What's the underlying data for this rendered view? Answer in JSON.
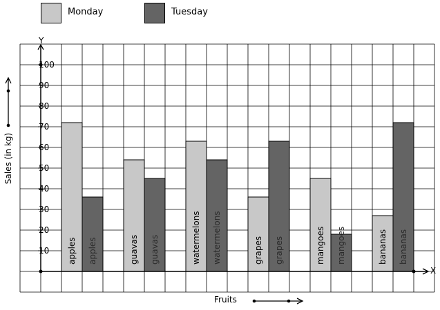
{
  "chart_data": {
    "type": "bar",
    "title": "",
    "xlabel": "Fruits",
    "ylabel": "Sales (in kg)",
    "x_axis_letter": "X",
    "y_axis_letter": "Y",
    "categories": [
      "apples",
      "guavas",
      "watermelons",
      "grapes",
      "mangoes",
      "bananas"
    ],
    "series": [
      {
        "name": "Monday",
        "color": "#c8c8c8",
        "values": [
          72,
          54,
          63,
          36,
          45,
          27
        ]
      },
      {
        "name": "Tuesday",
        "color": "#646464",
        "values": [
          36,
          45,
          54,
          63,
          18,
          72
        ]
      }
    ],
    "ylim": [
      0,
      110
    ],
    "yticks": [
      10,
      20,
      30,
      40,
      50,
      60,
      70,
      80,
      90,
      100
    ],
    "ytick_labels": [
      "10",
      "20",
      "30",
      "40",
      "50",
      "60",
      "70",
      "80",
      "90",
      "100"
    ],
    "grid": true,
    "legend": "top-left"
  }
}
